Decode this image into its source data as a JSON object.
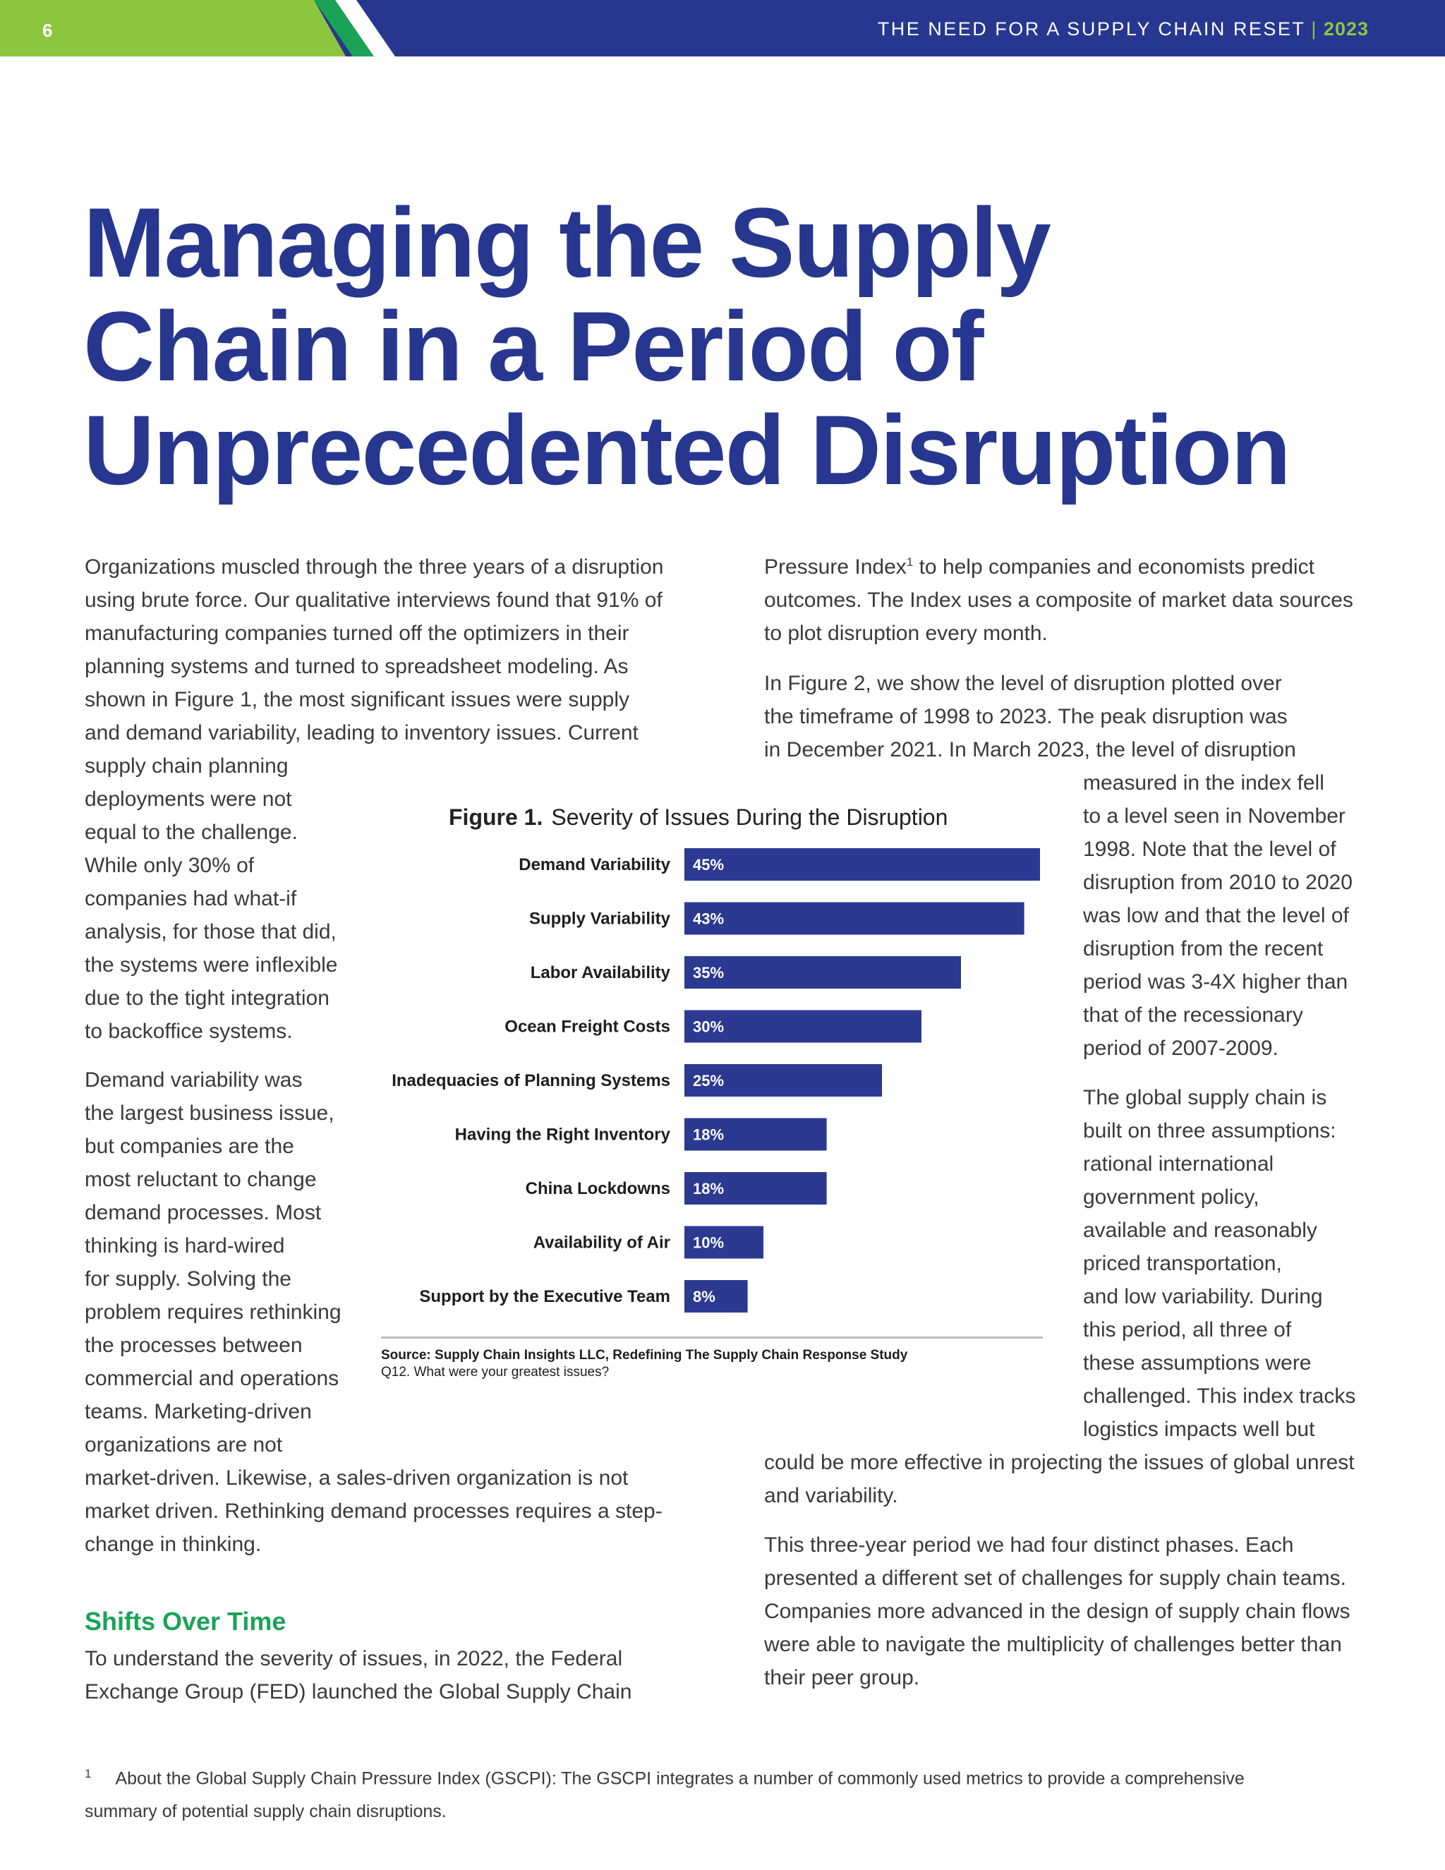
{
  "header": {
    "page_number": "6",
    "running_title": "THE NEED FOR A SUPPLY CHAIN RESET",
    "separator": "|",
    "year": "2023"
  },
  "title_lines": [
    "Managing the Supply",
    "Chain in a Period of",
    "Unprecedented Disruption"
  ],
  "left_column": {
    "p1": [
      "Organizations muscled through the three years of a disruption",
      "using brute force. Our qualitative interviews found that 91% of",
      "manufacturing companies turned off the optimizers in their",
      "planning systems and turned to spreadsheet modeling.  As",
      "shown in Figure 1, the most significant issues were supply",
      "and demand variability, leading to inventory issues. Current"
    ],
    "p1_narrow": [
      "supply chain planning",
      "deployments were not",
      "equal to the challenge.",
      "While only 30% of",
      "companies had what-if",
      "analysis, for those that did,",
      "the systems were inflexible",
      "due to the tight integration",
      "to backoffice systems."
    ],
    "p2_narrow": [
      "Demand variability was",
      "the largest business issue,",
      "but companies are the",
      "most reluctant to change",
      "demand processes. Most",
      "thinking is hard-wired",
      "for supply. Solving the",
      "problem requires rethinking",
      "the processes between",
      "commercial and operations",
      "teams. Marketing-driven",
      "organizations are not"
    ],
    "p2_wide": [
      "market-driven. Likewise, a sales-driven organization is not",
      "market driven. Rethinking demand processes requires a step-",
      "change in thinking."
    ],
    "section_heading": "Shifts Over Time",
    "p3": [
      "To understand the severity of issues, in 2022, the Federal",
      "Exchange Group (FED) launched the Global Supply Chain"
    ]
  },
  "right_column": {
    "p1_line1_a": "Pressure Index",
    "p1_line1_sup": "1",
    "p1_line1_b": " to help companies and economists predict",
    "p1_rest": [
      "outcomes. The Index uses a composite of market data sources",
      "to plot disruption every month."
    ],
    "p2_wide": [
      "In Figure 2, we show the level of disruption plotted over",
      "the timeframe of 1998 to 2023.  The peak disruption was",
      "in December 2021. In March 2023, the level of disruption"
    ],
    "p2_narrow": [
      "measured in the index fell",
      "to a level seen in November",
      "1998. Note that the level of",
      "disruption from 2010 to 2020",
      "was low and that the level of",
      "disruption from the recent",
      "period was 3-4X higher than",
      "that of the recessionary",
      "period of 2007-2009."
    ],
    "p3_narrow": [
      "The global supply chain is",
      "built on three assumptions:",
      "rational international",
      "government policy,",
      "available and reasonably",
      "priced transportation,",
      "and low variability. During",
      "this period, all three of",
      "these assumptions were",
      "challenged. This index tracks",
      "logistics impacts well but"
    ],
    "p3_wide": [
      "could be more effective in projecting the issues of global unrest",
      "and variability."
    ],
    "p4": [
      "This three-year period we had four distinct phases. Each",
      "presented a different set of challenges for supply chain teams.",
      "Companies more advanced in the design of supply chain flows",
      "were able to navigate the multiplicity of challenges better than",
      "their peer group."
    ]
  },
  "figure": {
    "label": "Figure 1.",
    "caption": "Severity of Issues During the Disruption",
    "source": "Source: Supply Chain Insights LLC, Redefining The Supply Chain Response Study",
    "question": "Q12. What were your greatest issues?"
  },
  "chart_data": {
    "type": "bar",
    "orientation": "horizontal",
    "title": "Severity of Issues During the Disruption",
    "categories": [
      "Demand Variability",
      "Supply Variability",
      "Labor Availability",
      "Ocean Freight Costs",
      "Inadequacies of Planning Systems",
      "Having the Right Inventory",
      "China Lockdowns",
      "Availability of Air",
      "Support by the Executive Team"
    ],
    "values": [
      45,
      43,
      35,
      30,
      25,
      18,
      18,
      10,
      8
    ],
    "value_labels": [
      "45%",
      "43%",
      "35%",
      "30%",
      "25%",
      "18%",
      "18%",
      "10%",
      "8%"
    ],
    "unit": "%",
    "bar_color": "#2b3990",
    "grid": false,
    "legend": "none"
  },
  "footnote": {
    "marker": "1",
    "line1": "About the Global Supply Chain Pressure Index (GSCPI): The GSCPI integrates a number of commonly used metrics to provide a comprehensive",
    "line2": "summary of potential supply chain disruptions."
  },
  "colors": {
    "brand_blue": "#27368f",
    "brand_green": "#8cc63f",
    "heading_green": "#1aa356",
    "body_text": "#3a3a3a"
  }
}
